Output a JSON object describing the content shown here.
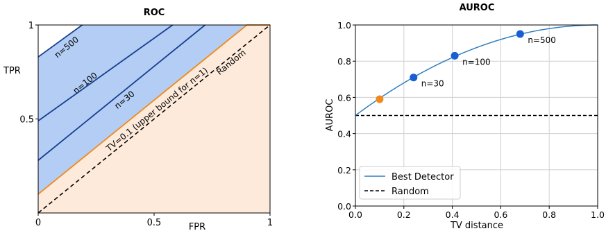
{
  "chart_data": [
    {
      "type": "area",
      "title": "ROC",
      "xlabel": "FPR",
      "ylabel": "TPR",
      "xlim": [
        0,
        1
      ],
      "ylim": [
        0,
        1
      ],
      "x_ticks": [
        "0",
        "0.5",
        "1"
      ],
      "y_ticks": [
        "0.5",
        "1"
      ],
      "grid": false,
      "colors": {
        "fill_tv": "#fdeadb",
        "fill_n": "#b3cdf4",
        "tv_line": "#f0891a",
        "n_line": "#173f8f",
        "random_line": "#000000"
      },
      "series": [
        {
          "name": "Random",
          "points": [
            [
              0,
              0
            ],
            [
              1,
              1
            ]
          ],
          "style": "dashed"
        },
        {
          "name": "TV=0.1 (upper bound for n=1)",
          "points": [
            [
              0,
              0.1
            ],
            [
              0.9,
              1
            ],
            [
              1,
              1
            ]
          ],
          "style": "solid"
        },
        {
          "name": "n=30",
          "points": [
            [
              0,
              0.28
            ],
            [
              0.72,
              1
            ]
          ],
          "style": "solid"
        },
        {
          "name": "n=100",
          "points": [
            [
              0,
              0.49
            ],
            [
              0.58,
              1
            ]
          ],
          "style": "solid"
        },
        {
          "name": "n=500",
          "points": [
            [
              0,
              0.83
            ],
            [
              0.19,
              1
            ]
          ],
          "style": "solid"
        }
      ]
    },
    {
      "type": "line",
      "title": "AUROC",
      "xlabel": "TV distance",
      "ylabel": "AUROC",
      "xlim": [
        0,
        1
      ],
      "ylim": [
        0,
        1
      ],
      "x_ticks": [
        "0.0",
        "0.2",
        "0.4",
        "0.6",
        "0.8",
        "1.0"
      ],
      "y_ticks": [
        "0.0",
        "0.2",
        "0.4",
        "0.6",
        "0.8",
        "1.0"
      ],
      "grid": true,
      "legend": "bottom-left",
      "colors": {
        "curve": "#2f7fc1",
        "random": "#000000",
        "points_n": "#1a5fd1",
        "point_tv": "#f0891a"
      },
      "series": [
        {
          "name": "Best Detector",
          "function": "(1 + x*(2 - x)) / 2",
          "style": "solid"
        },
        {
          "name": "Random",
          "y": 0.5,
          "style": "dashed"
        }
      ],
      "points": [
        {
          "x": 0.1,
          "y": 0.59,
          "label": "",
          "color": "#f0891a"
        },
        {
          "x": 0.24,
          "y": 0.71,
          "label": "n=30",
          "color": "#1a5fd1"
        },
        {
          "x": 0.41,
          "y": 0.83,
          "label": "n=100",
          "color": "#1a5fd1"
        },
        {
          "x": 0.68,
          "y": 0.95,
          "label": "n=500",
          "color": "#1a5fd1"
        }
      ]
    }
  ]
}
